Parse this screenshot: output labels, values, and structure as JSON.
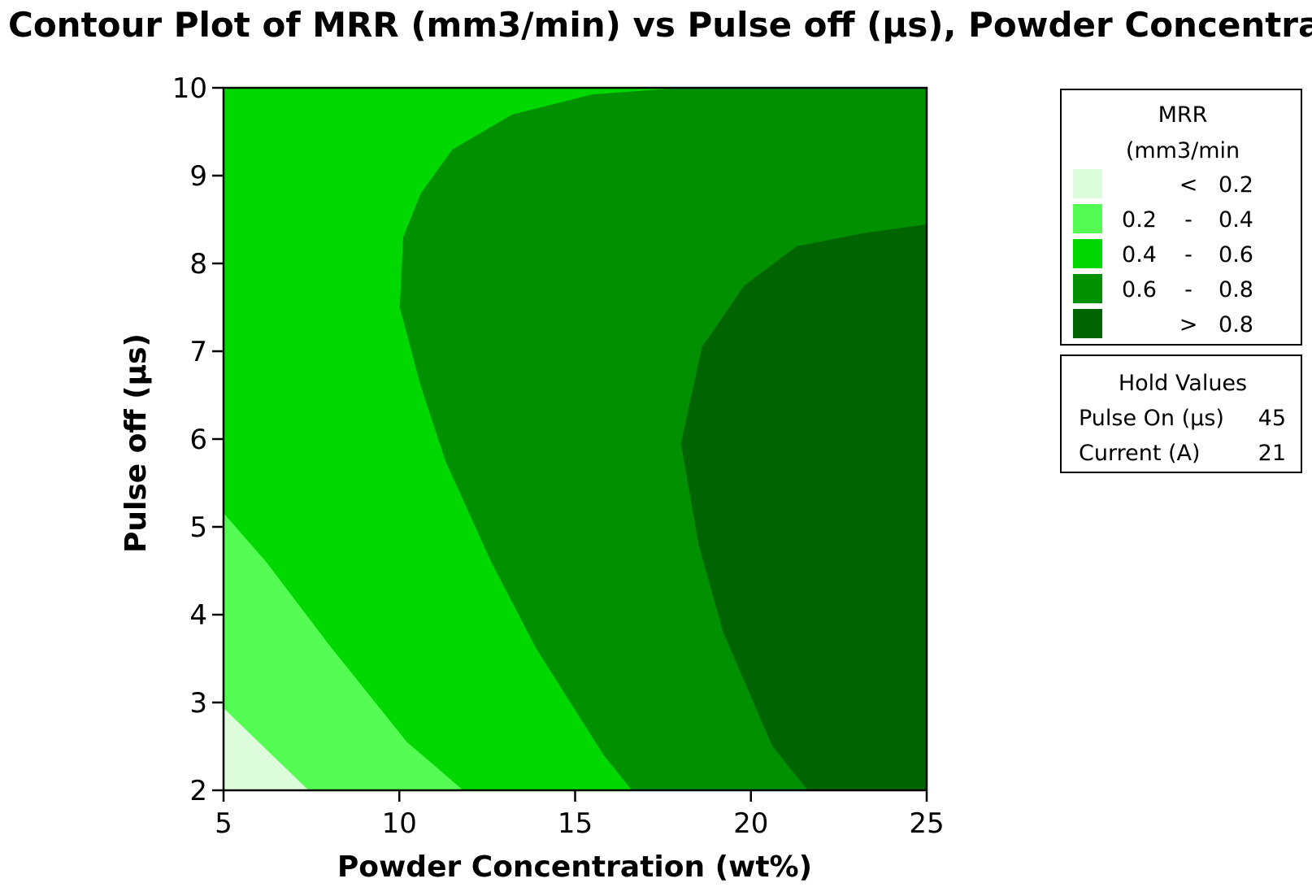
{
  "chart_data": {
    "type": "contour",
    "title": "Contour Plot of MRR (mm3/min) vs Pulse off (µs), Powder Concentra",
    "xlabel": "Powder Concentration (wt%)",
    "ylabel": "Pulse off (µs)",
    "xlim": [
      5,
      25
    ],
    "ylim": [
      2,
      10
    ],
    "xticks": [
      "5",
      "10",
      "15",
      "20",
      "25"
    ],
    "yticks": [
      "2",
      "3",
      "4",
      "5",
      "6",
      "7",
      "8",
      "9",
      "10"
    ],
    "grid": false,
    "legend": {
      "title_line1": "MRR",
      "title_line2": "(mm3/min",
      "placement": "right",
      "entries": [
        {
          "low": "",
          "op": "<",
          "high": "0.2",
          "color": "#dcfcdc"
        },
        {
          "low": "0.2",
          "op": "-",
          "high": "0.4",
          "color": "#54fc54"
        },
        {
          "low": "0.4",
          "op": "-",
          "high": "0.6",
          "color": "#00d800"
        },
        {
          "low": "0.6",
          "op": "-",
          "high": "0.8",
          "color": "#009000"
        },
        {
          "low": "",
          "op": ">",
          "high": "0.8",
          "color": "#006400"
        }
      ]
    },
    "hold_values": {
      "title": "Hold Values",
      "rows": [
        {
          "name": "Pulse On (µs)",
          "value": "45"
        },
        {
          "name": "Current (A)",
          "value": "21"
        }
      ]
    },
    "levels": [
      {
        "range": "< 0.2",
        "color": "#dcfcdc",
        "boundary": [
          [
            5,
            2.93
          ],
          [
            7.4,
            2.0
          ]
        ]
      },
      {
        "range": "0.2 - 0.4",
        "color": "#54fc54",
        "boundary": [
          [
            5,
            5.15
          ],
          [
            6.2,
            4.6
          ],
          [
            8.0,
            3.65
          ],
          [
            10.2,
            2.55
          ],
          [
            11.8,
            2.0
          ]
        ]
      },
      {
        "range": "0.4 - 0.6",
        "color": "#00d800",
        "boundary": [
          [
            16.6,
            2.0
          ],
          [
            15.8,
            2.4
          ],
          [
            13.9,
            3.6
          ],
          [
            12.6,
            4.6
          ],
          [
            11.3,
            5.75
          ],
          [
            10.6,
            6.6
          ],
          [
            10.0,
            7.5
          ],
          [
            10.1,
            8.3
          ],
          [
            10.6,
            8.8
          ],
          [
            11.5,
            9.3
          ],
          [
            13.2,
            9.7
          ],
          [
            15.5,
            9.93
          ],
          [
            17.9,
            10.0
          ]
        ]
      },
      {
        "range": "0.6 - 0.8",
        "color": "#009000",
        "boundary": [
          [
            21.6,
            2.0
          ],
          [
            20.6,
            2.5
          ],
          [
            19.2,
            3.8
          ],
          [
            18.5,
            4.8
          ],
          [
            18.0,
            5.95
          ],
          [
            18.6,
            7.05
          ],
          [
            19.8,
            7.75
          ],
          [
            21.3,
            8.2
          ],
          [
            23.2,
            8.35
          ],
          [
            25,
            8.45
          ]
        ]
      },
      {
        "range": "> 0.8",
        "color": "#006400",
        "boundary": []
      }
    ]
  }
}
